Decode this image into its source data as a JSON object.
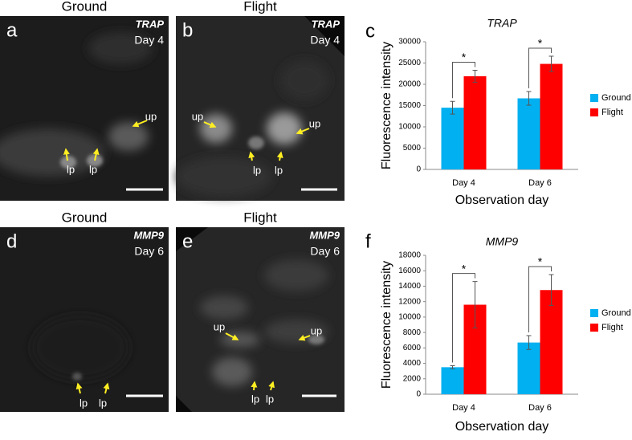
{
  "image_panels": [
    {
      "letter": "a",
      "title": "Ground",
      "gene": "TRAP",
      "day": "Day 4",
      "labels": [
        "up",
        "lp",
        "lp"
      ]
    },
    {
      "letter": "b",
      "title": "Flight",
      "gene": "TRAP",
      "day": "Day 4",
      "labels": [
        "up",
        "up",
        "lp",
        "lp"
      ]
    },
    {
      "letter": "d",
      "title": "Ground",
      "gene": "MMP9",
      "day": "Day 6",
      "labels": [
        "lp",
        "lp"
      ]
    },
    {
      "letter": "e",
      "title": "Flight",
      "gene": "MMP9",
      "day": "Day 6",
      "labels": [
        "up",
        "up",
        "lp",
        "lp"
      ]
    }
  ],
  "chart_data": [
    {
      "type": "bar",
      "letter": "c",
      "title": "TRAP",
      "x_label": "Observation day",
      "y_label": "Fluorescence intensity",
      "categories": [
        "Day 4",
        "Day 6"
      ],
      "series": [
        {
          "name": "Ground",
          "color": "#00b0f0",
          "values": [
            14500,
            16700
          ],
          "errors": [
            1500,
            1600
          ]
        },
        {
          "name": "Flight",
          "color": "#ff0000",
          "values": [
            21900,
            24800
          ],
          "errors": [
            1400,
            1800
          ]
        }
      ],
      "annotations": [
        "*",
        "*"
      ],
      "ylim": [
        0,
        30000
      ],
      "yticks": [
        0,
        5000,
        10000,
        15000,
        20000,
        25000,
        30000
      ],
      "grid": false
    },
    {
      "type": "bar",
      "letter": "f",
      "title": "MMP9",
      "x_label": "Observation day",
      "y_label": "Fluorescence intensity",
      "categories": [
        "Day 4",
        "Day 6"
      ],
      "series": [
        {
          "name": "Ground",
          "color": "#00b0f0",
          "values": [
            3500,
            6700
          ],
          "errors": [
            200,
            900
          ]
        },
        {
          "name": "Flight",
          "color": "#ff0000",
          "values": [
            11600,
            13500
          ],
          "errors": [
            3000,
            2000
          ]
        }
      ],
      "annotations": [
        "*",
        "*"
      ],
      "ylim": [
        0,
        18000
      ],
      "yticks": [
        0,
        2000,
        4000,
        6000,
        8000,
        10000,
        12000,
        14000,
        16000,
        18000
      ],
      "grid": false
    }
  ]
}
